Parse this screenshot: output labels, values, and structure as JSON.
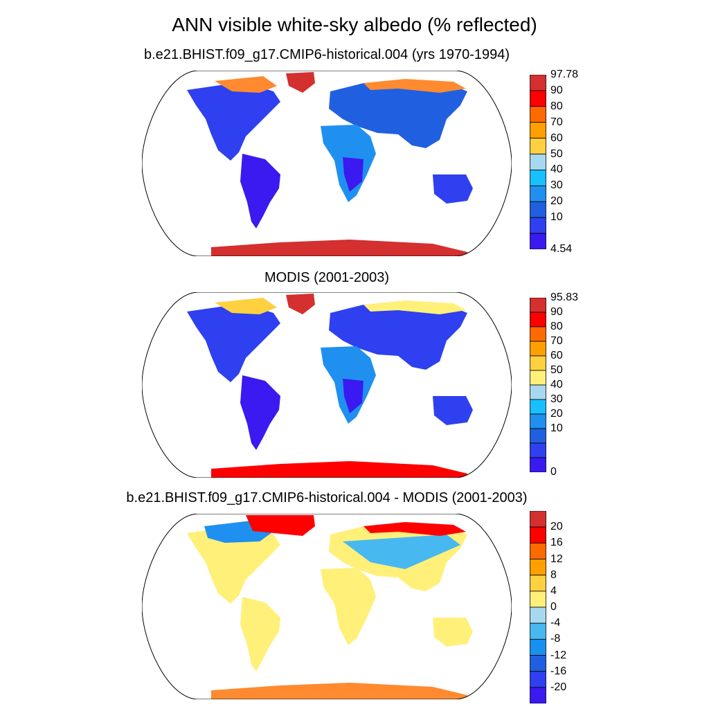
{
  "title": "ANN visible white-sky albedo (% reflected)",
  "panels": [
    {
      "subtitle": "b.e21.BHIST.f09_g17.CMIP6-historical.004 (yrs 1970-1994)",
      "colorbar": {
        "labels": [
          "97.78",
          "90",
          "80",
          "70",
          "60",
          "50",
          "40",
          "30",
          "20",
          "10",
          "4.54"
        ],
        "colors": [
          "#d3302f",
          "#ff0000",
          "#ff6a00",
          "#ffa000",
          "#ffd040",
          "#a8d8f0",
          "#18c0ff",
          "#2090f0",
          "#2060e0",
          "#2e40f0",
          "#3a1af0"
        ]
      }
    },
    {
      "subtitle": "MODIS (2001-2003)",
      "colorbar": {
        "labels": [
          "95.83",
          "90",
          "80",
          "70",
          "60",
          "50",
          "40",
          "30",
          "20",
          "10",
          "0"
        ],
        "colors": [
          "#d3302f",
          "#ff0000",
          "#ff6a00",
          "#ffa000",
          "#ffd040",
          "#fff07a",
          "#a8d8f0",
          "#18c0ff",
          "#2090f0",
          "#2060e0",
          "#2e40f0",
          "#3a1af0"
        ]
      }
    },
    {
      "subtitle": "b.e21.BHIST.f09_g17.CMIP6-historical.004 - MODIS (2001-2003)",
      "colorbar": {
        "labels": [
          "20",
          "16",
          "12",
          "8",
          "4",
          "0",
          "-4",
          "-8",
          "-12",
          "-16",
          "-20"
        ],
        "colors": [
          "#d3302f",
          "#ff0000",
          "#ff6a00",
          "#ffa000",
          "#ffd040",
          "#fff07a",
          "#a8d8f0",
          "#48b8f0",
          "#1890f0",
          "#2060e0",
          "#2e40f0",
          "#3a1af0"
        ]
      }
    }
  ]
}
